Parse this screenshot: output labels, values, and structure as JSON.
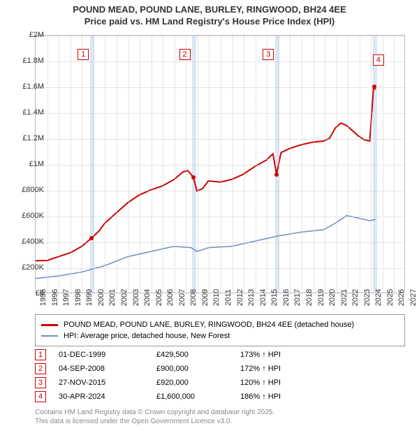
{
  "title": {
    "line1": "POUND MEAD, POUND LANE, BURLEY, RINGWOOD, BH24 4EE",
    "line2": "Price paid vs. HM Land Registry's House Price Index (HPI)"
  },
  "chart": {
    "type": "line",
    "xlim": [
      1995,
      2027
    ],
    "xtick_step": 1,
    "ylim": [
      0,
      2000000
    ],
    "ytick_step": 200000,
    "ytick_labels": [
      "£0",
      "£200K",
      "£400K",
      "£600K",
      "£800K",
      "£1M",
      "£1.2M",
      "£1.4M",
      "£1.6M",
      "£1.8M",
      "£2M"
    ],
    "background_color": "#ffffff",
    "grid_color": "#cccccc",
    "axis_color": "#bbbbbb",
    "marker_band_color": "#dbe6f6",
    "series": [
      {
        "name": "POUND MEAD, POUND LANE, BURLEY, RINGWOOD, BH24 4EE (detached house)",
        "color": "#cc0000",
        "line_width": 2,
        "data": [
          [
            1995.0,
            248000
          ],
          [
            1996.0,
            250000
          ],
          [
            1997.0,
            280000
          ],
          [
            1998.0,
            310000
          ],
          [
            1999.0,
            360000
          ],
          [
            1999.92,
            429500
          ],
          [
            2000.5,
            480000
          ],
          [
            2001.0,
            540000
          ],
          [
            2002.0,
            620000
          ],
          [
            2003.0,
            700000
          ],
          [
            2004.0,
            760000
          ],
          [
            2005.0,
            800000
          ],
          [
            2006.0,
            830000
          ],
          [
            2007.0,
            880000
          ],
          [
            2007.8,
            940000
          ],
          [
            2008.2,
            950000
          ],
          [
            2008.68,
            900000
          ],
          [
            2009.0,
            790000
          ],
          [
            2009.5,
            810000
          ],
          [
            2010.0,
            870000
          ],
          [
            2011.0,
            860000
          ],
          [
            2012.0,
            880000
          ],
          [
            2013.0,
            920000
          ],
          [
            2014.0,
            980000
          ],
          [
            2015.0,
            1030000
          ],
          [
            2015.6,
            1080000
          ],
          [
            2015.91,
            920000
          ],
          [
            2016.3,
            1090000
          ],
          [
            2017.0,
            1120000
          ],
          [
            2018.0,
            1150000
          ],
          [
            2019.0,
            1170000
          ],
          [
            2020.0,
            1180000
          ],
          [
            2020.5,
            1200000
          ],
          [
            2021.0,
            1280000
          ],
          [
            2021.5,
            1320000
          ],
          [
            2022.0,
            1300000
          ],
          [
            2022.5,
            1260000
          ],
          [
            2023.0,
            1220000
          ],
          [
            2023.5,
            1190000
          ],
          [
            2024.0,
            1180000
          ],
          [
            2024.33,
            1600000
          ],
          [
            2024.5,
            1580000
          ]
        ]
      },
      {
        "name": "HPI: Average price, detached house, New Forest",
        "color": "#6b8fc4",
        "line_width": 1.5,
        "data": [
          [
            1995.0,
            110000
          ],
          [
            1997.0,
            130000
          ],
          [
            1999.0,
            160000
          ],
          [
            2001.0,
            210000
          ],
          [
            2003.0,
            280000
          ],
          [
            2005.0,
            320000
          ],
          [
            2007.0,
            360000
          ],
          [
            2008.5,
            350000
          ],
          [
            2009.0,
            320000
          ],
          [
            2010.0,
            350000
          ],
          [
            2012.0,
            360000
          ],
          [
            2014.0,
            400000
          ],
          [
            2016.0,
            440000
          ],
          [
            2018.0,
            470000
          ],
          [
            2020.0,
            490000
          ],
          [
            2021.0,
            540000
          ],
          [
            2022.0,
            600000
          ],
          [
            2023.0,
            580000
          ],
          [
            2024.0,
            560000
          ],
          [
            2024.5,
            570000
          ]
        ]
      }
    ],
    "markers": [
      {
        "n": "1",
        "x": 1999.92,
        "y": 429500
      },
      {
        "n": "2",
        "x": 2008.68,
        "y": 900000
      },
      {
        "n": "3",
        "x": 2015.91,
        "y": 920000
      },
      {
        "n": "4",
        "x": 2024.33,
        "y": 1600000
      }
    ]
  },
  "legend": {
    "items": [
      {
        "color": "#cc0000",
        "label": "POUND MEAD, POUND LANE, BURLEY, RINGWOOD, BH24 4EE (detached house)"
      },
      {
        "color": "#6b8fc4",
        "label": "HPI: Average price, detached house, New Forest"
      }
    ]
  },
  "sales": [
    {
      "n": "1",
      "date": "01-DEC-1999",
      "price": "£429,500",
      "pct": "173% ↑ HPI"
    },
    {
      "n": "2",
      "date": "04-SEP-2008",
      "price": "£900,000",
      "pct": "172% ↑ HPI"
    },
    {
      "n": "3",
      "date": "27-NOV-2015",
      "price": "£920,000",
      "pct": "120% ↑ HPI"
    },
    {
      "n": "4",
      "date": "30-APR-2024",
      "price": "£1,600,000",
      "pct": "186% ↑ HPI"
    }
  ],
  "footnote": {
    "line1": "Contains HM Land Registry data © Crown copyright and database right 2025.",
    "line2": "This data is licensed under the Open Government Licence v3.0."
  }
}
